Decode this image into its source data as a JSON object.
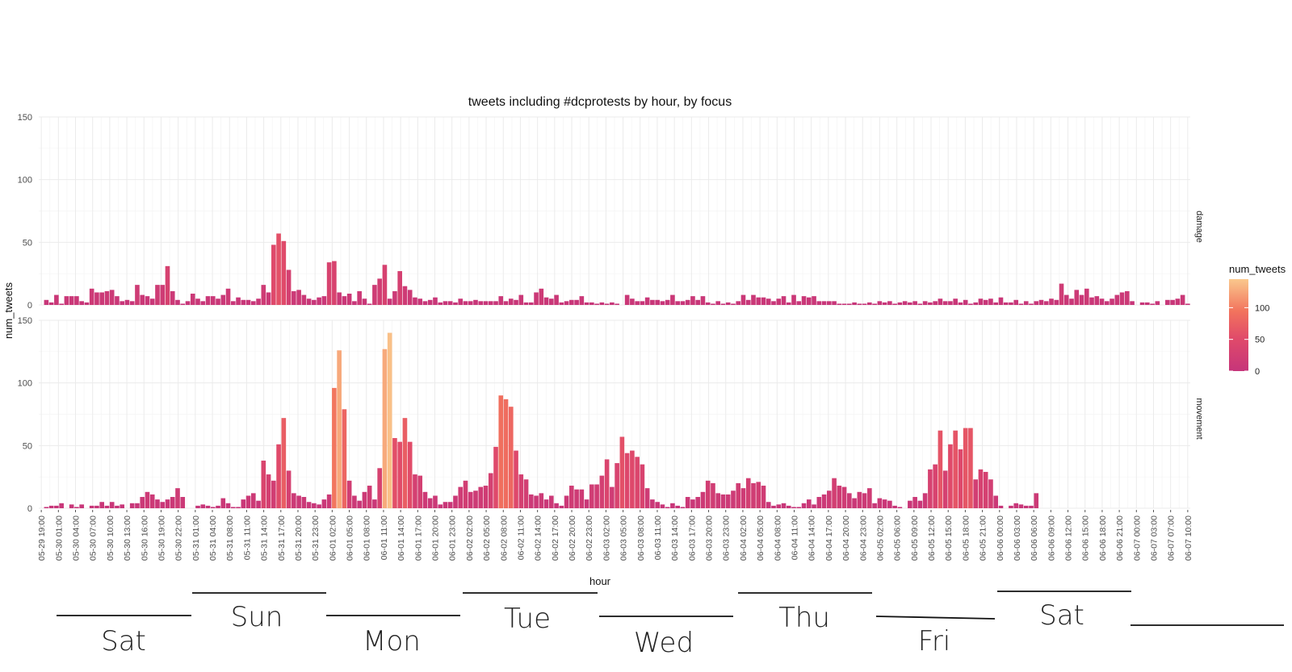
{
  "chart_data": {
    "type": "bar",
    "title": "tweets including #dcprotests by hour, by focus",
    "xlabel": "hour",
    "ylabel": "num_tweets",
    "ylim": [
      0,
      150
    ],
    "yticks": [
      0,
      50,
      100,
      150
    ],
    "grid": true,
    "legend": {
      "title": "num_tweets",
      "position": "right",
      "ticks": [
        0,
        50,
        100
      ],
      "color_low": "#c6357a",
      "color_mid": "#ef5f5c",
      "color_high": "#f9c98a",
      "max": 145
    },
    "x_start": "05-29 19:00",
    "x_tick_labels": [
      "05-29 19:00",
      "05-30 01:00",
      "05-30 04:00",
      "05-30 07:00",
      "05-30 10:00",
      "05-30 13:00",
      "05-30 16:00",
      "05-30 19:00",
      "05-30 22:00",
      "05-31 01:00",
      "05-31 04:00",
      "05-31 08:00",
      "05-31 11:00",
      "05-31 14:00",
      "05-31 17:00",
      "05-31 20:00",
      "05-31 23:00",
      "06-01 02:00",
      "06-01 05:00",
      "06-01 08:00",
      "06-01 11:00",
      "06-01 14:00",
      "06-01 17:00",
      "06-01 20:00",
      "06-01 23:00",
      "06-02 02:00",
      "06-02 05:00",
      "06-02 08:00",
      "06-02 11:00",
      "06-02 14:00",
      "06-02 17:00",
      "06-02 20:00",
      "06-02 23:00",
      "06-03 02:00",
      "06-03 05:00",
      "06-03 08:00",
      "06-03 11:00",
      "06-03 14:00",
      "06-03 17:00",
      "06-03 20:00",
      "06-03 23:00",
      "06-04 02:00",
      "06-04 05:00",
      "06-04 08:00",
      "06-04 11:00",
      "06-04 14:00",
      "06-04 17:00",
      "06-04 20:00",
      "06-04 23:00",
      "06-05 02:00",
      "06-05 06:00",
      "06-05 09:00",
      "06-05 12:00",
      "06-05 15:00",
      "06-05 18:00",
      "06-05 21:00",
      "06-06 00:00",
      "06-06 03:00",
      "06-06 06:00",
      "06-06 09:00",
      "06-06 12:00",
      "06-06 15:00",
      "06-06 18:00",
      "06-06 21:00",
      "06-07 00:00",
      "06-07 03:00",
      "06-07 07:00",
      "06-07 10:00"
    ],
    "panels": [
      {
        "name": "damage",
        "values": [
          0,
          4,
          2,
          8,
          1,
          7,
          7,
          7,
          3,
          2,
          13,
          10,
          10,
          11,
          12,
          7,
          3,
          4,
          3,
          16,
          8,
          7,
          5,
          16,
          16,
          31,
          11,
          4,
          1,
          3,
          9,
          5,
          3,
          7,
          7,
          5,
          8,
          13,
          3,
          6,
          4,
          4,
          3,
          5,
          16,
          10,
          48,
          57,
          51,
          28,
          11,
          12,
          8,
          5,
          4,
          6,
          7,
          34,
          35,
          10,
          7,
          9,
          3,
          11,
          5,
          1,
          16,
          21,
          32,
          5,
          11,
          27,
          15,
          12,
          6,
          5,
          3,
          4,
          6,
          2,
          3,
          3,
          2,
          5,
          3,
          3,
          4,
          3,
          3,
          3,
          3,
          7,
          3,
          5,
          4,
          8,
          2,
          2,
          10,
          13,
          6,
          5,
          8,
          2,
          3,
          4,
          4,
          7,
          2,
          2,
          1,
          2,
          1,
          2,
          1,
          0,
          8,
          5,
          3,
          3,
          6,
          4,
          4,
          3,
          4,
          8,
          3,
          3,
          4,
          7,
          4,
          7,
          2,
          1,
          3,
          1,
          2,
          1,
          3,
          8,
          4,
          8,
          6,
          6,
          5,
          3,
          5,
          7,
          2,
          8,
          3,
          7,
          6,
          7,
          3,
          3,
          3,
          3,
          1,
          1,
          1,
          2,
          1,
          1,
          2,
          1,
          3,
          2,
          3,
          1,
          2,
          3,
          2,
          3,
          1,
          3,
          2,
          3,
          5,
          3,
          3,
          5,
          2,
          4,
          1,
          2,
          5,
          4,
          5,
          2,
          6,
          2,
          2,
          4,
          1,
          3,
          1,
          3,
          4,
          3,
          5,
          4,
          17,
          8,
          5,
          12,
          8,
          13,
          6,
          7,
          5,
          3,
          5,
          8,
          10,
          11,
          3,
          0,
          2,
          2,
          1,
          3,
          0,
          4,
          4,
          5,
          8,
          1
        ]
      },
      {
        "name": "movement",
        "values": [
          0,
          1,
          2,
          2,
          4,
          0,
          3,
          1,
          3,
          0,
          2,
          2,
          5,
          2,
          5,
          2,
          3,
          0,
          4,
          4,
          9,
          13,
          11,
          7,
          5,
          7,
          9,
          16,
          9,
          0,
          0,
          2,
          3,
          2,
          1,
          2,
          8,
          4,
          1,
          1,
          7,
          10,
          12,
          6,
          38,
          27,
          22,
          51,
          72,
          30,
          12,
          10,
          9,
          5,
          4,
          3,
          7,
          11,
          96,
          126,
          79,
          22,
          10,
          6,
          13,
          18,
          7,
          32,
          127,
          140,
          56,
          53,
          72,
          53,
          27,
          26,
          13,
          8,
          10,
          3,
          5,
          5,
          10,
          17,
          22,
          13,
          14,
          17,
          18,
          28,
          49,
          90,
          87,
          81,
          46,
          27,
          23,
          11,
          10,
          12,
          7,
          10,
          4,
          2,
          10,
          18,
          15,
          15,
          7,
          19,
          19,
          26,
          39,
          17,
          36,
          57,
          44,
          46,
          41,
          35,
          16,
          7,
          5,
          3,
          1,
          4,
          2,
          1,
          9,
          7,
          9,
          13,
          22,
          20,
          12,
          11,
          11,
          14,
          20,
          16,
          24,
          20,
          21,
          18,
          5,
          2,
          3,
          4,
          2,
          1,
          1,
          4,
          7,
          3,
          9,
          11,
          14,
          24,
          18,
          17,
          12,
          8,
          13,
          12,
          16,
          4,
          8,
          7,
          6,
          2,
          1,
          0,
          6,
          9,
          6,
          12,
          31,
          35,
          62,
          30,
          51,
          62,
          47,
          64,
          64,
          23,
          31,
          29,
          23,
          10,
          2,
          0,
          2,
          4,
          3,
          2,
          2,
          12,
          0
        ]
      }
    ],
    "day_annotations": [
      "Sat",
      "Sun",
      "Mon",
      "Tue",
      "Wed",
      "Thu",
      "Fri",
      "Sat"
    ]
  }
}
